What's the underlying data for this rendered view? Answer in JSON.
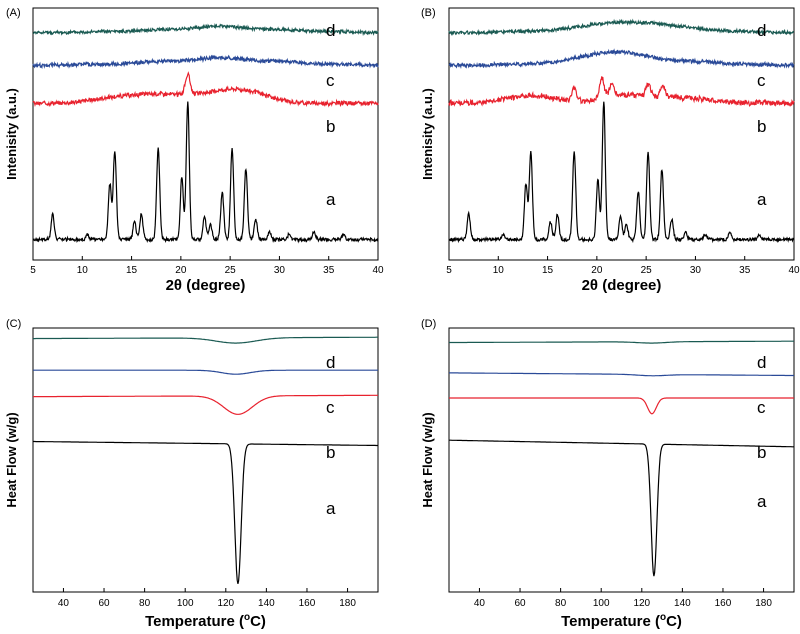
{
  "chart_data": [
    {
      "panel": "(A)",
      "type": "line",
      "xlabel": "2θ (degree)",
      "ylabel": "Intenisity (a.u.)",
      "xlim": [
        5,
        40
      ],
      "xticks": [
        5,
        10,
        15,
        20,
        25,
        30,
        35,
        40
      ],
      "series": [
        {
          "name": "a",
          "color": "#000000",
          "baseline": 0.08,
          "noise": 0.006,
          "points": [
            [
              5,
              0
            ],
            [
              7,
              0.1
            ],
            [
              10.5,
              0.02
            ],
            [
              12.8,
              0.22
            ],
            [
              13.3,
              0.35
            ],
            [
              15.3,
              0.07
            ],
            [
              16,
              0.1
            ],
            [
              17.7,
              0.36
            ],
            [
              20.1,
              0.25
            ],
            [
              20.7,
              0.55
            ],
            [
              22.4,
              0.09
            ],
            [
              23,
              0.06
            ],
            [
              24.2,
              0.19
            ],
            [
              25.2,
              0.36
            ],
            [
              26.6,
              0.28
            ],
            [
              27.6,
              0.08
            ],
            [
              29,
              0.03
            ],
            [
              31,
              0.02
            ],
            [
              33.5,
              0.03
            ],
            [
              36.5,
              0.02
            ],
            [
              40,
              0
            ]
          ]
        },
        {
          "name": "b",
          "color": "#e8222e",
          "baseline": 0.62,
          "noise": 0.008,
          "points": [
            [
              5,
              0
            ],
            [
              13.3,
              0.02
            ],
            [
              17.7,
              0.03
            ],
            [
              20.7,
              0.08
            ],
            [
              22.5,
              0.02
            ],
            [
              25.2,
              0.02
            ],
            [
              26.7,
              0.03
            ],
            [
              40,
              0
            ]
          ]
        },
        {
          "name": "c",
          "color": "#2a4a98",
          "baseline": 0.77,
          "noise": 0.007,
          "points": [
            [
              5,
              0
            ],
            [
              12,
              0.005
            ],
            [
              18,
              0.015
            ],
            [
              24,
              0.03
            ],
            [
              30,
              0.015
            ],
            [
              36,
              0.004
            ],
            [
              40,
              0
            ]
          ]
        },
        {
          "name": "d",
          "color": "#1a5a52",
          "baseline": 0.9,
          "noise": 0.006,
          "points": [
            [
              5,
              0
            ],
            [
              12,
              0.004
            ],
            [
              18,
              0.012
            ],
            [
              24,
              0.025
            ],
            [
              30,
              0.012
            ],
            [
              36,
              0.004
            ],
            [
              40,
              0
            ]
          ]
        }
      ]
    },
    {
      "panel": "(B)",
      "type": "line",
      "xlabel": "2θ (degree)",
      "ylabel": "Intenisity (a.u.)",
      "xlim": [
        5,
        40
      ],
      "xticks": [
        5,
        10,
        15,
        20,
        25,
        30,
        35,
        40
      ],
      "series": [
        {
          "name": "a",
          "color": "#000000",
          "baseline": 0.08,
          "noise": 0.006,
          "points": [
            [
              5,
              0
            ],
            [
              7,
              0.1
            ],
            [
              10.5,
              0.02
            ],
            [
              12.8,
              0.22
            ],
            [
              13.3,
              0.35
            ],
            [
              15.3,
              0.07
            ],
            [
              16,
              0.1
            ],
            [
              17.7,
              0.35
            ],
            [
              20.1,
              0.24
            ],
            [
              20.7,
              0.55
            ],
            [
              22.4,
              0.09
            ],
            [
              23,
              0.06
            ],
            [
              24.2,
              0.19
            ],
            [
              25.2,
              0.35
            ],
            [
              26.6,
              0.28
            ],
            [
              27.6,
              0.08
            ],
            [
              29,
              0.03
            ],
            [
              31,
              0.02
            ],
            [
              33.5,
              0.03
            ],
            [
              36.5,
              0.02
            ],
            [
              40,
              0
            ]
          ]
        },
        {
          "name": "b",
          "color": "#e8222e",
          "baseline": 0.62,
          "noise": 0.01,
          "points": [
            [
              5,
              0
            ],
            [
              13.3,
              0.03
            ],
            [
              17.7,
              0.05
            ],
            [
              20.5,
              0.08
            ],
            [
              21.5,
              0.05
            ],
            [
              23,
              0.03
            ],
            [
              25.2,
              0.05
            ],
            [
              26.7,
              0.05
            ],
            [
              29,
              0.02
            ],
            [
              40,
              0
            ]
          ]
        },
        {
          "name": "c",
          "color": "#2a4a98",
          "baseline": 0.77,
          "noise": 0.007,
          "points": [
            [
              5,
              0
            ],
            [
              12,
              0.005
            ],
            [
              18,
              0.015
            ],
            [
              21,
              0.03
            ],
            [
              24,
              0.03
            ],
            [
              30,
              0.015
            ],
            [
              36,
              0.004
            ],
            [
              40,
              0
            ]
          ]
        },
        {
          "name": "d",
          "color": "#1a5a52",
          "baseline": 0.9,
          "noise": 0.006,
          "points": [
            [
              5,
              0
            ],
            [
              12,
              0.004
            ],
            [
              18,
              0.015
            ],
            [
              22,
              0.03
            ],
            [
              26,
              0.025
            ],
            [
              30,
              0.012
            ],
            [
              36,
              0.004
            ],
            [
              40,
              0
            ]
          ]
        }
      ]
    },
    {
      "panel": "(C)",
      "type": "line",
      "xlabel": "Temperature (",
      "xlabel_unit": "C)",
      "xlabel_sup": "o",
      "ylabel": "Heat Flow (w/g)",
      "xlim": [
        25,
        195
      ],
      "xticks": [
        40,
        60,
        80,
        100,
        120,
        140,
        160,
        180
      ],
      "series": [
        {
          "name": "a",
          "color": "#000000",
          "start": 0.57,
          "end": 0.555,
          "peak_x": 126,
          "depth": 0.53,
          "width": 2.2
        },
        {
          "name": "b",
          "color": "#e8222e",
          "start": 0.74,
          "end": 0.745,
          "peak_x": 126,
          "depth": 0.07,
          "width": 10
        },
        {
          "name": "c",
          "color": "#2a4a98",
          "start": 0.84,
          "end": 0.84,
          "peak_x": 125,
          "depth": 0.015,
          "width": 10
        },
        {
          "name": "d",
          "color": "#1a5a52",
          "start": 0.96,
          "end": 0.965,
          "peak_x": 125,
          "depth": 0.02,
          "width": 14
        }
      ]
    },
    {
      "panel": "(D)",
      "type": "line",
      "xlabel": "Temperature (",
      "xlabel_unit": "C)",
      "xlabel_sup": "o",
      "ylabel": "Heat Flow (w/g)",
      "xlim": [
        25,
        195
      ],
      "xticks": [
        40,
        60,
        80,
        100,
        120,
        140,
        160,
        180
      ],
      "series": [
        {
          "name": "a",
          "color": "#000000",
          "start": 0.575,
          "end": 0.55,
          "peak_x": 126,
          "depth": 0.5,
          "width": 2.0
        },
        {
          "name": "b",
          "color": "#e8222e",
          "start": 0.735,
          "end": 0.735,
          "peak_x": 125,
          "depth": 0.06,
          "width": 3
        },
        {
          "name": "c",
          "color": "#2a4a98",
          "start": 0.83,
          "end": 0.82,
          "peak_x": 125,
          "depth": 0.005,
          "width": 10
        },
        {
          "name": "d",
          "color": "#1a5a52",
          "start": 0.945,
          "end": 0.95,
          "peak_x": 125,
          "depth": 0.005,
          "width": 10
        }
      ]
    }
  ]
}
